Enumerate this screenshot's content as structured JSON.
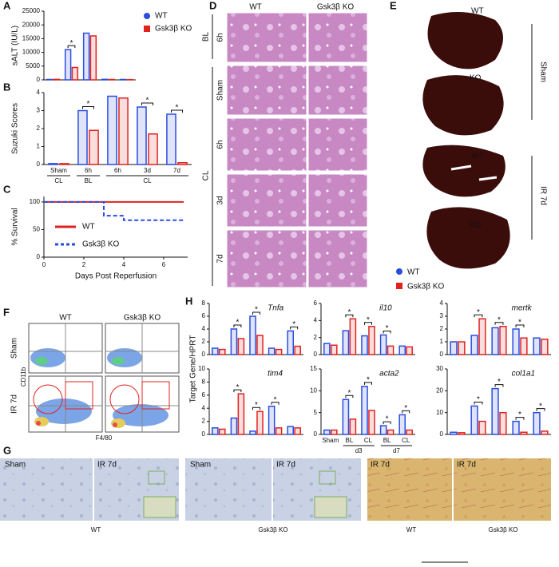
{
  "chart_data": [
    {
      "type": "bar",
      "panel": "A",
      "ylabel": "sALT (IU/L)",
      "categories": [
        null,
        null,
        null,
        null,
        null
      ],
      "series": [
        {
          "name": "WT",
          "color": "#2a4de0",
          "values": [
            150,
            11000,
            17000,
            200,
            150
          ]
        },
        {
          "name": "Gsk3β KO",
          "color": "#e0231f",
          "values": [
            200,
            4500,
            16000,
            150,
            100
          ]
        }
      ],
      "ylim": [
        0,
        25000
      ],
      "yticks": [
        0,
        5000,
        10000,
        15000,
        20000,
        25000
      ],
      "significance": {
        "label": "*",
        "groups": [
          1
        ]
      },
      "legend": "right"
    },
    {
      "type": "bar",
      "panel": "B",
      "ylabel": "Suzuki Scores",
      "categories": [
        "Sham",
        "6h",
        "6h",
        "3d",
        "7d"
      ],
      "category_groups": [
        {
          "label": "CL",
          "from": 0,
          "to": 0
        },
        {
          "label": "BL",
          "from": 1,
          "to": 1
        },
        {
          "label": "CL",
          "from": 2,
          "to": 4
        }
      ],
      "series": [
        {
          "color": "#2a4de0",
          "values": [
            0.05,
            3.0,
            3.8,
            3.2,
            2.8
          ]
        },
        {
          "color": "#e0231f",
          "values": [
            0.05,
            1.9,
            3.7,
            1.7,
            0.1
          ]
        }
      ],
      "ylim": [
        0,
        4
      ],
      "yticks": [
        0,
        1,
        2,
        3,
        4
      ],
      "significance": {
        "label": "*",
        "groups": [
          1,
          3,
          4
        ]
      }
    },
    {
      "type": "line",
      "panel": "C",
      "ylabel": "% Survival",
      "xlabel": "Days Post Reperfusion",
      "x": [
        0,
        3,
        3,
        4,
        4,
        7
      ],
      "xlim": [
        0,
        7.2
      ],
      "xticks": [
        0,
        2,
        4,
        6
      ],
      "ylim": [
        0,
        110
      ],
      "yticks": [
        0,
        50,
        100
      ],
      "series": [
        {
          "name": "WT",
          "color": "#e0231f",
          "dash": false,
          "values": [
            100,
            100,
            100,
            100,
            100,
            100
          ]
        },
        {
          "name": "Gsk3β KO",
          "color": "#2a4de0",
          "dash": true,
          "values": [
            100,
            100,
            75,
            75,
            67,
            67
          ]
        }
      ]
    },
    {
      "type": "bar",
      "panel": "H",
      "title": "Tnfa",
      "categories": [
        null,
        null,
        null,
        null,
        null
      ],
      "series": [
        {
          "color": "#2a4de0",
          "values": [
            1,
            4,
            6,
            1,
            3.7
          ]
        },
        {
          "color": "#e0231f",
          "values": [
            0.8,
            2.5,
            3,
            0.8,
            1.3
          ]
        }
      ],
      "ylim": [
        0,
        8
      ],
      "yticks": [
        0,
        2,
        4,
        6,
        8
      ],
      "significance": {
        "label": "*",
        "groups": [
          1,
          2,
          4
        ]
      }
    },
    {
      "type": "bar",
      "panel": "H",
      "title": "il10",
      "categories": [
        null,
        null,
        null,
        null,
        null
      ],
      "series": [
        {
          "color": "#2a4de0",
          "values": [
            1.3,
            2.8,
            2.2,
            2.3,
            1.0
          ]
        },
        {
          "color": "#e0231f",
          "values": [
            1.1,
            4.2,
            3.3,
            1.0,
            0.9
          ]
        }
      ],
      "ylim": [
        0,
        6
      ],
      "yticks": [
        0,
        2,
        4,
        6
      ],
      "significance": {
        "label": "*",
        "groups": [
          1,
          2,
          3
        ]
      }
    },
    {
      "type": "bar",
      "panel": "H",
      "title": "mertk",
      "categories": [
        null,
        null,
        null,
        null,
        null
      ],
      "series": [
        {
          "color": "#2a4de0",
          "values": [
            1,
            1.5,
            2.1,
            2.0,
            1.3
          ]
        },
        {
          "color": "#e0231f",
          "values": [
            1,
            2.8,
            2.2,
            1.3,
            1.2
          ]
        }
      ],
      "ylim": [
        0,
        4
      ],
      "yticks": [
        0,
        1,
        2,
        3,
        4
      ],
      "significance": {
        "label": "*",
        "groups": [
          1,
          2,
          3
        ]
      }
    },
    {
      "type": "bar",
      "panel": "H",
      "title": "tim4",
      "categories": [
        null,
        null,
        null,
        null,
        null
      ],
      "series": [
        {
          "color": "#2a4de0",
          "values": [
            1,
            2.5,
            0.5,
            4.3,
            1.2
          ]
        },
        {
          "color": "#e0231f",
          "values": [
            0.8,
            6.2,
            3.5,
            1,
            1
          ]
        }
      ],
      "ylim": [
        0,
        10
      ],
      "yticks": [
        0,
        2,
        4,
        6,
        8,
        10
      ],
      "significance": {
        "label": "*",
        "groups": [
          1,
          2,
          3
        ]
      }
    },
    {
      "type": "bar",
      "panel": "H",
      "title": "acta2",
      "categories": [
        "Sham",
        "BL",
        "CL",
        "BL",
        "CL"
      ],
      "category_groups": [
        {
          "label": "d3",
          "from": 1,
          "to": 2
        },
        {
          "label": "d7",
          "from": 3,
          "to": 4
        }
      ],
      "series": [
        {
          "color": "#2a4de0",
          "values": [
            1,
            8,
            11,
            2,
            4.5
          ]
        },
        {
          "color": "#e0231f",
          "values": [
            1,
            3.5,
            5.5,
            1,
            1
          ]
        }
      ],
      "ylim": [
        0,
        15
      ],
      "yticks": [
        0,
        5,
        10,
        15
      ],
      "significance": {
        "label": "*",
        "groups": [
          1,
          2,
          3,
          4
        ]
      }
    },
    {
      "type": "bar",
      "panel": "H",
      "title": "col1a1",
      "categories": [
        null,
        null,
        null,
        null,
        null
      ],
      "series": [
        {
          "color": "#2a4de0",
          "values": [
            1,
            13,
            21,
            6,
            10
          ]
        },
        {
          "color": "#e0231f",
          "values": [
            0.8,
            6,
            10,
            1,
            1.5
          ]
        }
      ],
      "ylim": [
        0,
        30
      ],
      "yticks": [
        0,
        10,
        20,
        30
      ],
      "significance": {
        "label": "*",
        "groups": [
          1,
          2,
          3,
          4
        ]
      }
    }
  ],
  "figure": {
    "panel_letters": [
      "A",
      "B",
      "C",
      "D",
      "E",
      "F",
      "G",
      "H"
    ],
    "d": {
      "columns": [
        "WT",
        "Gsk3β KO"
      ],
      "rows": [
        "6h",
        "Sham",
        "6h",
        "3d",
        "7d"
      ],
      "groups": [
        "BL",
        "CL"
      ]
    },
    "e": {
      "labels": [
        "WT",
        "KO",
        "WT",
        "KO"
      ],
      "groups": [
        "Sham",
        "IR 7d"
      ]
    },
    "legend": {
      "items": [
        "WT",
        "Gsk3β KO"
      ]
    },
    "f": {
      "columns": [
        "WT",
        "Gsk3β KO"
      ],
      "rows": [
        "Sham",
        "IR 7d"
      ],
      "y_axis": "CD11b",
      "x_axis": "F4/80"
    },
    "g": {
      "image_labels": [
        "Sham",
        "IR 7d",
        "Sham",
        "IR 7d",
        "IR 7d",
        "IR 7d"
      ],
      "captions": [
        "WT",
        "Gsk3β KO",
        "WT",
        "Gsk3β KO"
      ]
    },
    "h": {
      "ylabel": "Target Gene/HPRT"
    }
  }
}
